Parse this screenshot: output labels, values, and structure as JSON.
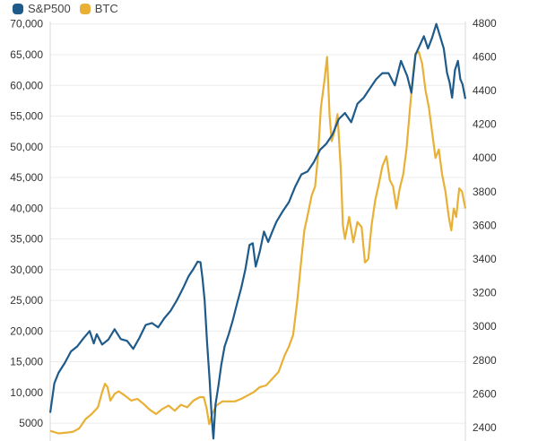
{
  "chart_data": {
    "type": "line",
    "x_range": [
      0,
      1
    ],
    "left_axis": {
      "ticks": [
        5000,
        10000,
        15000,
        20000,
        25000,
        30000,
        35000,
        40000,
        45000,
        50000,
        55000,
        60000,
        65000,
        70000
      ],
      "tick_labels": [
        "5000",
        "10,000",
        "15,000",
        "20,000",
        "25,000",
        "30,000",
        "35,000",
        "40,000",
        "45,000",
        "50,000",
        "55,000",
        "60,000",
        "65,000",
        "70,000"
      ],
      "range": [
        2100,
        70400
      ]
    },
    "right_axis": {
      "ticks": [
        2400,
        2600,
        2800,
        3000,
        3200,
        3400,
        3600,
        3800,
        4000,
        4200,
        4400,
        4600,
        4800
      ],
      "tick_labels": [
        "2400",
        "2600",
        "2800",
        "3000",
        "3200",
        "3400",
        "3600",
        "3800",
        "4000",
        "4200",
        "4400",
        "4600",
        "4800"
      ],
      "range": [
        2320,
        4810
      ]
    },
    "series": [
      {
        "name": "S&P500",
        "axis": "left",
        "color": "#1f5b8a",
        "points": [
          [
            0.0,
            6700
          ],
          [
            0.01,
            11500
          ],
          [
            0.02,
            13200
          ],
          [
            0.035,
            14800
          ],
          [
            0.05,
            16700
          ],
          [
            0.065,
            17500
          ],
          [
            0.08,
            18800
          ],
          [
            0.095,
            20000
          ],
          [
            0.105,
            18000
          ],
          [
            0.112,
            19500
          ],
          [
            0.125,
            17800
          ],
          [
            0.14,
            18600
          ],
          [
            0.155,
            20300
          ],
          [
            0.17,
            18700
          ],
          [
            0.185,
            18400
          ],
          [
            0.2,
            17100
          ],
          [
            0.215,
            18900
          ],
          [
            0.23,
            21000
          ],
          [
            0.245,
            21300
          ],
          [
            0.26,
            20600
          ],
          [
            0.275,
            22100
          ],
          [
            0.29,
            23300
          ],
          [
            0.305,
            25000
          ],
          [
            0.32,
            27000
          ],
          [
            0.333,
            28900
          ],
          [
            0.345,
            30100
          ],
          [
            0.355,
            31300
          ],
          [
            0.362,
            31200
          ],
          [
            0.367,
            28500
          ],
          [
            0.372,
            25000
          ],
          [
            0.378,
            18000
          ],
          [
            0.384,
            12000
          ],
          [
            0.389,
            6000
          ],
          [
            0.393,
            2500
          ],
          [
            0.398,
            8000
          ],
          [
            0.405,
            11000
          ],
          [
            0.412,
            14500
          ],
          [
            0.42,
            17500
          ],
          [
            0.43,
            19500
          ],
          [
            0.44,
            21800
          ],
          [
            0.45,
            24500
          ],
          [
            0.46,
            27000
          ],
          [
            0.47,
            30000
          ],
          [
            0.48,
            34000
          ],
          [
            0.488,
            34300
          ],
          [
            0.495,
            30500
          ],
          [
            0.505,
            33000
          ],
          [
            0.515,
            36200
          ],
          [
            0.525,
            34500
          ],
          [
            0.535,
            36200
          ],
          [
            0.545,
            37800
          ],
          [
            0.56,
            39500
          ],
          [
            0.575,
            41000
          ],
          [
            0.59,
            43500
          ],
          [
            0.605,
            45500
          ],
          [
            0.62,
            46000
          ],
          [
            0.635,
            47500
          ],
          [
            0.65,
            49500
          ],
          [
            0.665,
            50500
          ],
          [
            0.68,
            52000
          ],
          [
            0.695,
            54500
          ],
          [
            0.71,
            55500
          ],
          [
            0.725,
            54000
          ],
          [
            0.74,
            57000
          ],
          [
            0.755,
            58000
          ],
          [
            0.77,
            59500
          ],
          [
            0.785,
            61000
          ],
          [
            0.8,
            62000
          ],
          [
            0.815,
            62000
          ],
          [
            0.83,
            60000
          ],
          [
            0.845,
            64000
          ],
          [
            0.86,
            61500
          ],
          [
            0.87,
            58800
          ],
          [
            0.88,
            65000
          ],
          [
            0.89,
            66500
          ],
          [
            0.9,
            68000
          ],
          [
            0.91,
            66000
          ],
          [
            0.92,
            67800
          ],
          [
            0.93,
            70000
          ],
          [
            0.94,
            67800
          ],
          [
            0.948,
            66000
          ],
          [
            0.956,
            62000
          ],
          [
            0.962,
            60500
          ],
          [
            0.968,
            58000
          ],
          [
            0.975,
            62500
          ],
          [
            0.982,
            64000
          ],
          [
            0.988,
            61000
          ],
          [
            0.993,
            60200
          ],
          [
            1.0,
            57800
          ]
        ]
      },
      {
        "name": "BTC",
        "axis": "right",
        "color": "#e8b035",
        "points": [
          [
            0.0,
            2380
          ],
          [
            0.02,
            2365
          ],
          [
            0.04,
            2370
          ],
          [
            0.055,
            2375
          ],
          [
            0.07,
            2395
          ],
          [
            0.085,
            2450
          ],
          [
            0.1,
            2480
          ],
          [
            0.115,
            2520
          ],
          [
            0.125,
            2610
          ],
          [
            0.132,
            2660
          ],
          [
            0.138,
            2640
          ],
          [
            0.145,
            2560
          ],
          [
            0.155,
            2600
          ],
          [
            0.165,
            2615
          ],
          [
            0.18,
            2590
          ],
          [
            0.195,
            2560
          ],
          [
            0.21,
            2570
          ],
          [
            0.225,
            2540
          ],
          [
            0.24,
            2505
          ],
          [
            0.255,
            2480
          ],
          [
            0.27,
            2510
          ],
          [
            0.285,
            2530
          ],
          [
            0.3,
            2500
          ],
          [
            0.315,
            2535
          ],
          [
            0.33,
            2520
          ],
          [
            0.345,
            2560
          ],
          [
            0.36,
            2580
          ],
          [
            0.37,
            2580
          ],
          [
            0.377,
            2510
          ],
          [
            0.383,
            2420
          ],
          [
            0.39,
            2480
          ],
          [
            0.4,
            2530
          ],
          [
            0.415,
            2555
          ],
          [
            0.43,
            2555
          ],
          [
            0.445,
            2555
          ],
          [
            0.46,
            2570
          ],
          [
            0.475,
            2590
          ],
          [
            0.49,
            2610
          ],
          [
            0.505,
            2640
          ],
          [
            0.52,
            2650
          ],
          [
            0.535,
            2690
          ],
          [
            0.55,
            2730
          ],
          [
            0.565,
            2830
          ],
          [
            0.575,
            2880
          ],
          [
            0.585,
            2950
          ],
          [
            0.595,
            3150
          ],
          [
            0.605,
            3400
          ],
          [
            0.612,
            3570
          ],
          [
            0.62,
            3660
          ],
          [
            0.63,
            3780
          ],
          [
            0.638,
            3830
          ],
          [
            0.645,
            4010
          ],
          [
            0.652,
            4300
          ],
          [
            0.66,
            4450
          ],
          [
            0.667,
            4600
          ],
          [
            0.673,
            4250
          ],
          [
            0.678,
            4100
          ],
          [
            0.685,
            4160
          ],
          [
            0.692,
            4260
          ],
          [
            0.7,
            3930
          ],
          [
            0.705,
            3600
          ],
          [
            0.71,
            3520
          ],
          [
            0.72,
            3650
          ],
          [
            0.73,
            3500
          ],
          [
            0.74,
            3620
          ],
          [
            0.75,
            3590
          ],
          [
            0.758,
            3380
          ],
          [
            0.766,
            3400
          ],
          [
            0.774,
            3600
          ],
          [
            0.783,
            3750
          ],
          [
            0.792,
            3850
          ],
          [
            0.8,
            3950
          ],
          [
            0.81,
            4010
          ],
          [
            0.818,
            3870
          ],
          [
            0.826,
            3830
          ],
          [
            0.834,
            3700
          ],
          [
            0.842,
            3820
          ],
          [
            0.85,
            3900
          ],
          [
            0.858,
            4050
          ],
          [
            0.866,
            4280
          ],
          [
            0.874,
            4500
          ],
          [
            0.88,
            4620
          ],
          [
            0.888,
            4630
          ],
          [
            0.896,
            4560
          ],
          [
            0.904,
            4400
          ],
          [
            0.912,
            4300
          ],
          [
            0.92,
            4150
          ],
          [
            0.928,
            4000
          ],
          [
            0.936,
            4050
          ],
          [
            0.944,
            3900
          ],
          [
            0.952,
            3800
          ],
          [
            0.96,
            3650
          ],
          [
            0.966,
            3570
          ],
          [
            0.972,
            3700
          ],
          [
            0.978,
            3650
          ],
          [
            0.985,
            3820
          ],
          [
            0.992,
            3800
          ],
          [
            1.0,
            3700
          ]
        ]
      }
    ]
  }
}
